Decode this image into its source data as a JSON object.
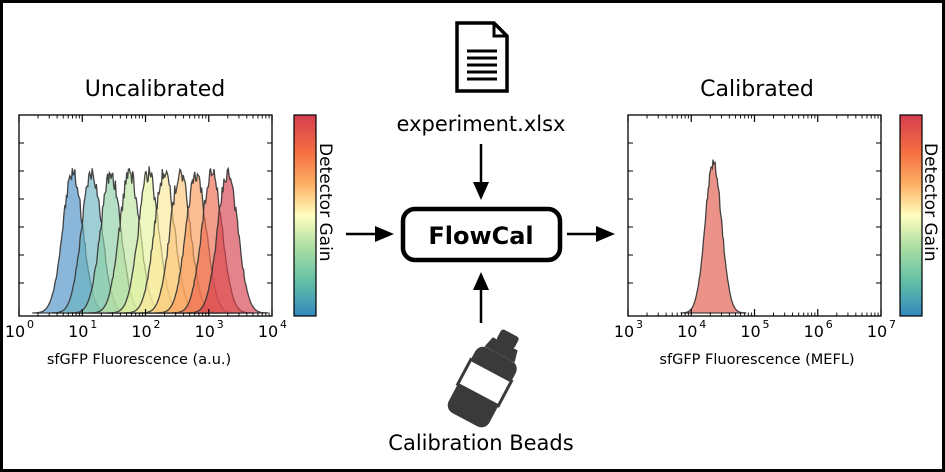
{
  "left_panel": {
    "title": "Uncalibrated",
    "xlabel": "sfGFP Fluorescence (a.u.)",
    "colorbar_label": "Detector Gain",
    "tick_base": "10",
    "tick_exponents": [
      "0",
      "1",
      "2",
      "3",
      "4"
    ]
  },
  "right_panel": {
    "title": "Calibrated",
    "xlabel": "sfGFP Fluorescence (MEFL)",
    "colorbar_label": "Detector Gain",
    "tick_base": "10",
    "tick_exponents": [
      "3",
      "4",
      "5",
      "6",
      "7"
    ]
  },
  "center": {
    "input_file": "experiment.xlsx",
    "tool": "FlowCal",
    "beads": "Calibration Beads",
    "file_icon": "document-icon",
    "beads_icon": "bead-bottle-icon"
  },
  "chart_data": [
    {
      "type": "histogram",
      "title": "Uncalibrated",
      "xlabel": "sfGFP Fluorescence (a.u.)",
      "x_scale": "log",
      "xlim": [
        1,
        10000
      ],
      "colorbar": "Detector Gain",
      "series_peaks_log10": [
        0.85,
        1.15,
        1.45,
        1.75,
        2.05,
        2.3,
        2.55,
        2.8,
        3.05,
        3.3
      ],
      "series_colors": [
        "#4a8fc4",
        "#6cb4c0",
        "#8fd0a8",
        "#bde4a0",
        "#e6f3a0",
        "#fbe89a",
        "#fdc477",
        "#f89a5a",
        "#ec6a4e",
        "#d6404e"
      ],
      "colors": {
        "colorbar_top": "#d53e4f",
        "colorbar_mid": "#ffffbf",
        "colorbar_bottom": "#3288bd"
      }
    },
    {
      "type": "histogram",
      "title": "Calibrated",
      "xlabel": "sfGFP Fluorescence (MEFL)",
      "x_scale": "log",
      "xlim": [
        1000,
        10000000
      ],
      "colorbar": "Detector Gain",
      "series_peaks_log10": [
        4.35
      ],
      "series_colors": [
        "#e0584a"
      ]
    }
  ]
}
